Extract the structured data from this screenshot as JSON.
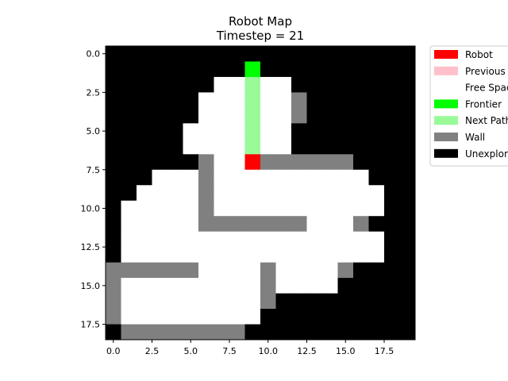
{
  "chart_data": {
    "type": "heatmap",
    "title": "Robot Map",
    "subtitle": "Timestep = 21",
    "xlabel": "",
    "ylabel": "",
    "xlim": [
      -0.5,
      19.5
    ],
    "ylim": [
      18.5,
      -0.5
    ],
    "xticks": [
      "0.0",
      "2.5",
      "5.0",
      "7.5",
      "10.0",
      "12.5",
      "15.0",
      "17.5"
    ],
    "yticks": [
      "0.0",
      "2.5",
      "5.0",
      "7.5",
      "10.0",
      "12.5",
      "15.0",
      "17.5"
    ],
    "grid": false,
    "legend_position": "outside-top-right",
    "legend": [
      {
        "label": "Robot",
        "color": "#ff0000"
      },
      {
        "label": "Previous Path",
        "color": "#ffc0cb"
      },
      {
        "label": "Free Space",
        "color": "#ffffff"
      },
      {
        "label": "Frontier",
        "color": "#00ff00"
      },
      {
        "label": "Next Path",
        "color": "#98fb98"
      },
      {
        "label": "Wall",
        "color": "#808080"
      },
      {
        "label": "Unexplored",
        "color": "#000000"
      }
    ],
    "cell_codes": {
      "U": "Unexplored",
      "F": "Free Space",
      "W": "Wall",
      "R": "Robot",
      "N": "Next Path",
      "T": "Frontier"
    },
    "grid_rows": [
      "UUUUUUUUUUUUUUUUUUUU",
      "UUUUUUUUUTUUUUUUUUUU",
      "UUUUUUUFFNFFUUUUUUUU",
      "UUUUUUFFFNFFWUUUUUUU",
      "UUUUUUFFFNFFWUUUUUUU",
      "UUUUUFFFFNFFUUUUUUUU",
      "UUUUUFFFFNFFUUUUUUUU",
      "UUUUUUWFFRWWWWWWUUUU",
      "UUUFFFWFFFFFFFFFFUUU",
      "UUFFFFWFFFFFFFFFFFUU",
      "UFFFFFWFFFFFFFFFFFUU",
      "UFFFFFWWWWWWWFFFWUUU",
      "UFFFFFFFFFFFFFFFFFUU",
      "UFFFFFFFFFFFFFFFFFUU",
      "WWWWWWFFFFWFFFFWUUUU",
      "WFFFFFFFFFWFFFFUUUUU",
      "WFFFFFFFFFWUUUUUUUUU",
      "WFFFFFFFFFUUUUUUUUUU",
      "UWWWWWWWWUUUUUUUUUUU"
    ]
  }
}
